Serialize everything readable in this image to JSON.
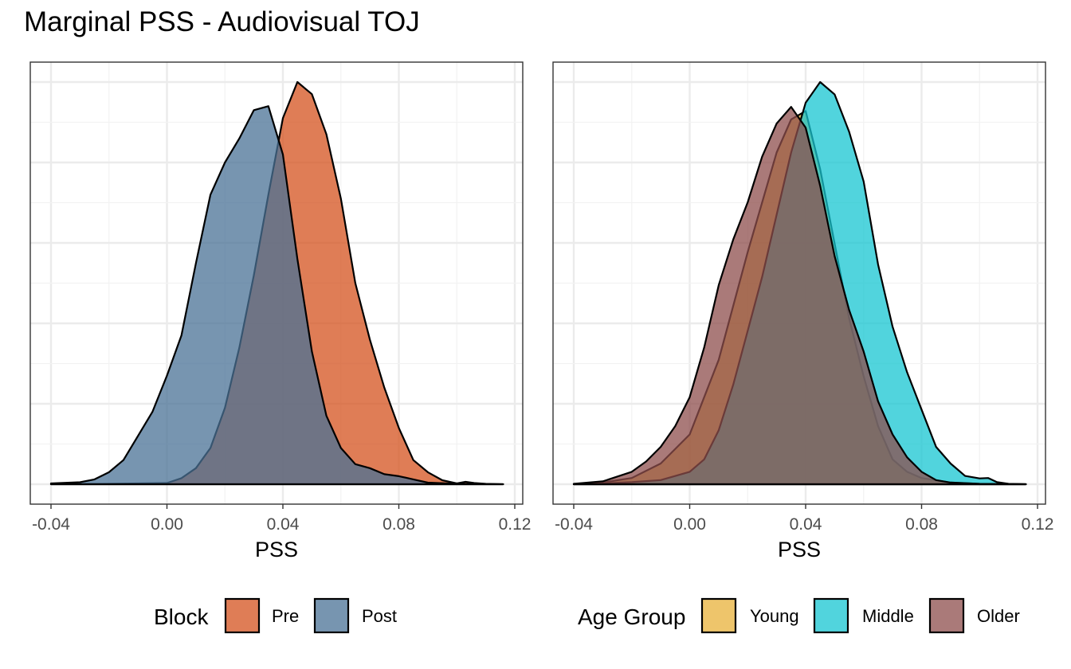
{
  "title": "Marginal PSS - Audiovisual TOJ",
  "chart_data": [
    {
      "type": "area",
      "xlabel": "PSS",
      "ylabel": "",
      "xlim": [
        -0.044,
        0.12
      ],
      "x_ticks": [
        "-0.04",
        "0.00",
        "0.04",
        "0.08",
        "0.12"
      ],
      "x_tick_values": [
        -0.04,
        0.0,
        0.04,
        0.08,
        0.12
      ],
      "y_ticks_shown": false,
      "grid": true,
      "legend": {
        "title": "Block",
        "position": "bottom"
      },
      "series": [
        {
          "name": "Pre",
          "color": "#D4521E",
          "points": [
            [
              -0.04,
              0
            ],
            [
              -0.02,
              0.001
            ],
            [
              0.0,
              0.003
            ],
            [
              0.005,
              0.015
            ],
            [
              0.01,
              0.04
            ],
            [
              0.015,
              0.09
            ],
            [
              0.02,
              0.19
            ],
            [
              0.025,
              0.34
            ],
            [
              0.03,
              0.52
            ],
            [
              0.035,
              0.72
            ],
            [
              0.04,
              0.91
            ],
            [
              0.045,
              1.0
            ],
            [
              0.05,
              0.97
            ],
            [
              0.055,
              0.87
            ],
            [
              0.06,
              0.71
            ],
            [
              0.065,
              0.5
            ],
            [
              0.07,
              0.36
            ],
            [
              0.075,
              0.24
            ],
            [
              0.08,
              0.14
            ],
            [
              0.085,
              0.06
            ],
            [
              0.09,
              0.03
            ],
            [
              0.095,
              0.01
            ],
            [
              0.1,
              0.002
            ],
            [
              0.103,
              0.006
            ],
            [
              0.106,
              0.003
            ],
            [
              0.11,
              0.001
            ],
            [
              0.116,
              0
            ]
          ]
        },
        {
          "name": "Post",
          "color": "#4A7296",
          "points": [
            [
              -0.04,
              0.002
            ],
            [
              -0.03,
              0.005
            ],
            [
              -0.025,
              0.012
            ],
            [
              -0.02,
              0.03
            ],
            [
              -0.015,
              0.06
            ],
            [
              -0.01,
              0.12
            ],
            [
              -0.005,
              0.18
            ],
            [
              0.0,
              0.27
            ],
            [
              0.005,
              0.37
            ],
            [
              0.01,
              0.55
            ],
            [
              0.015,
              0.72
            ],
            [
              0.02,
              0.8
            ],
            [
              0.025,
              0.86
            ],
            [
              0.03,
              0.93
            ],
            [
              0.035,
              0.94
            ],
            [
              0.04,
              0.82
            ],
            [
              0.045,
              0.56
            ],
            [
              0.05,
              0.33
            ],
            [
              0.055,
              0.17
            ],
            [
              0.06,
              0.09
            ],
            [
              0.065,
              0.05
            ],
            [
              0.07,
              0.04
            ],
            [
              0.075,
              0.025
            ],
            [
              0.08,
              0.02
            ],
            [
              0.085,
              0.012
            ],
            [
              0.09,
              0.004
            ],
            [
              0.1,
              0.001
            ],
            [
              0.116,
              0
            ]
          ]
        }
      ]
    },
    {
      "type": "area",
      "xlabel": "PSS",
      "ylabel": "",
      "xlim": [
        -0.044,
        0.12
      ],
      "x_ticks": [
        "-0.04",
        "0.00",
        "0.04",
        "0.08",
        "0.12"
      ],
      "x_tick_values": [
        -0.04,
        0.0,
        0.04,
        0.08,
        0.12
      ],
      "y_ticks_shown": false,
      "grid": true,
      "legend": {
        "title": "Age Group",
        "position": "bottom"
      },
      "series": [
        {
          "name": "Young",
          "color": "#E8B23A",
          "points": [
            [
              -0.04,
              0
            ],
            [
              -0.03,
              0.004
            ],
            [
              -0.02,
              0.015
            ],
            [
              -0.01,
              0.05
            ],
            [
              0.0,
              0.12
            ],
            [
              0.01,
              0.3
            ],
            [
              0.02,
              0.56
            ],
            [
              0.03,
              0.8
            ],
            [
              0.035,
              0.88
            ],
            [
              0.04,
              0.9
            ],
            [
              0.045,
              0.76
            ],
            [
              0.05,
              0.58
            ],
            [
              0.055,
              0.4
            ],
            [
              0.06,
              0.26
            ],
            [
              0.065,
              0.14
            ],
            [
              0.07,
              0.06
            ],
            [
              0.075,
              0.03
            ],
            [
              0.08,
              0.015
            ],
            [
              0.09,
              0.004
            ],
            [
              0.1,
              0.001
            ],
            [
              0.116,
              0
            ]
          ]
        },
        {
          "name": "Middle",
          "color": "#17C6D2",
          "points": [
            [
              -0.04,
              0
            ],
            [
              -0.03,
              0.002
            ],
            [
              -0.02,
              0.005
            ],
            [
              -0.01,
              0.01
            ],
            [
              0.0,
              0.03
            ],
            [
              0.005,
              0.06
            ],
            [
              0.01,
              0.13
            ],
            [
              0.015,
              0.24
            ],
            [
              0.02,
              0.37
            ],
            [
              0.025,
              0.5
            ],
            [
              0.03,
              0.65
            ],
            [
              0.035,
              0.8
            ],
            [
              0.04,
              0.92
            ],
            [
              0.045,
              0.97
            ],
            [
              0.05,
              0.94
            ],
            [
              0.055,
              0.85
            ],
            [
              0.06,
              0.73
            ],
            [
              0.065,
              0.53
            ],
            [
              0.07,
              0.38
            ],
            [
              0.075,
              0.27
            ],
            [
              0.08,
              0.18
            ],
            [
              0.085,
              0.09
            ],
            [
              0.09,
              0.05
            ],
            [
              0.095,
              0.02
            ],
            [
              0.1,
              0.014
            ],
            [
              0.103,
              0.015
            ],
            [
              0.106,
              0.005
            ],
            [
              0.11,
              0.001
            ],
            [
              0.116,
              0
            ]
          ]
        },
        {
          "name": "Older",
          "color": "#8E4D4C",
          "points": [
            [
              -0.04,
              0.001
            ],
            [
              -0.03,
              0.007
            ],
            [
              -0.02,
              0.03
            ],
            [
              -0.015,
              0.055
            ],
            [
              -0.01,
              0.09
            ],
            [
              -0.005,
              0.14
            ],
            [
              0.0,
              0.21
            ],
            [
              0.005,
              0.33
            ],
            [
              0.01,
              0.48
            ],
            [
              0.015,
              0.59
            ],
            [
              0.02,
              0.68
            ],
            [
              0.025,
              0.79
            ],
            [
              0.03,
              0.87
            ],
            [
              0.035,
              0.91
            ],
            [
              0.04,
              0.86
            ],
            [
              0.045,
              0.72
            ],
            [
              0.05,
              0.55
            ],
            [
              0.055,
              0.42
            ],
            [
              0.06,
              0.32
            ],
            [
              0.065,
              0.2
            ],
            [
              0.07,
              0.12
            ],
            [
              0.075,
              0.065
            ],
            [
              0.08,
              0.03
            ],
            [
              0.085,
              0.01
            ],
            [
              0.09,
              0.004
            ],
            [
              0.1,
              0.001
            ],
            [
              0.116,
              0
            ]
          ]
        }
      ]
    }
  ]
}
